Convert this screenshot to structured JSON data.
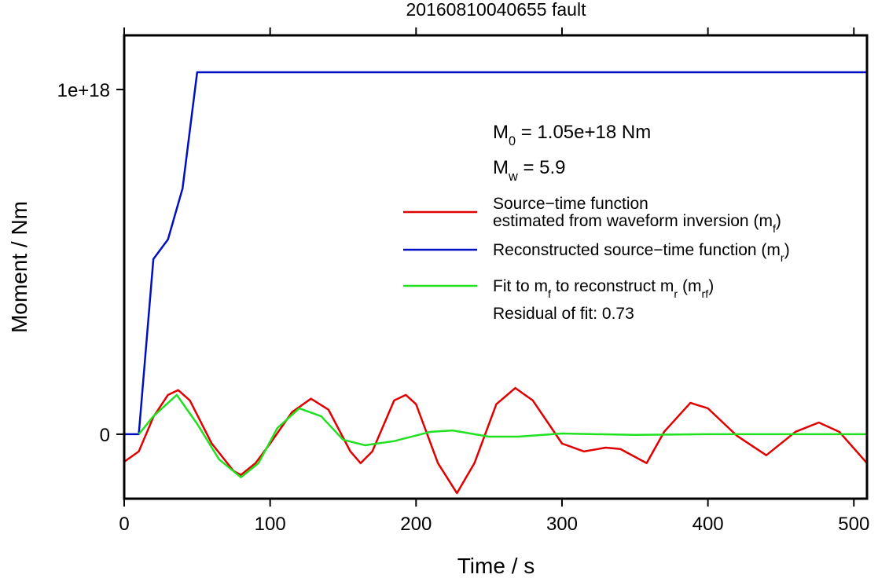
{
  "chart_data": {
    "type": "line",
    "title": "20160810040655 fault",
    "xlabel": "Time / s",
    "ylabel": "Moment / Nm",
    "xlim": [
      0,
      509
    ],
    "xticks": [
      0,
      100,
      200,
      300,
      400,
      500
    ],
    "ylim": [
      -1.87e+17,
      1.157e+18
    ],
    "yticks": [
      0,
      {
        "value": 1e+18,
        "label": "1e+18"
      }
    ],
    "grid": false,
    "series": [
      {
        "name": [
          [
            {
              "text": "Source−time function"
            }
          ],
          [
            {
              "text": "estimated from waveform inversion (m"
            },
            {
              "text": "f",
              "sub": true
            },
            {
              "text": ")"
            }
          ]
        ],
        "color": "#e00000",
        "x": [
          0,
          10,
          20,
          30,
          37,
          45,
          60,
          75,
          80,
          90,
          100,
          115,
          128,
          140,
          155,
          162,
          170,
          185,
          193,
          200,
          215,
          228,
          240,
          255,
          268,
          280,
          300,
          315,
          330,
          340,
          358,
          370,
          388,
          400,
          420,
          440,
          460,
          476,
          490,
          509
        ],
        "values": [
          -8e+16,
          -5e+16,
          5e+16,
          1.14e+17,
          1.28e+17,
          9.8e+16,
          -2.7e+16,
          -1.07e+17,
          -1.18e+17,
          -8.4e+16,
          -2.7e+16,
          6.4e+16,
          1.03e+17,
          7.1e+16,
          -5e+16,
          -8.4e+16,
          -5e+16,
          9.8e+16,
          1.14e+17,
          8.7e+16,
          -8.4e+16,
          -1.71e+17,
          -8.4e+16,
          8.7e+16,
          1.34e+17,
          9.8e+16,
          -2.7e+16,
          -5e+16,
          -3.9e+16,
          -4.3e+16,
          -8.4e+16,
          7000000000000000.0,
          9.1e+16,
          7.5e+16,
          -5000000000000000.0,
          -6.1e+16,
          7000000000000000.0,
          3.4e+16,
          7000000000000000.0,
          -8.4e+16
        ]
      },
      {
        "name": [
          [
            {
              "text": "Reconstructed source−time function (m"
            },
            {
              "text": "r",
              "sub": true
            },
            {
              "text": ")"
            }
          ]
        ],
        "color": "#0010c0",
        "x": [
          0,
          10,
          20,
          30,
          40,
          50,
          509
        ],
        "values": [
          0,
          0,
          5.08e+17,
          5.65e+17,
          7.13e+17,
          1.05e+18,
          1.05e+18
        ]
      },
      {
        "name": [
          [
            {
              "text": "Fit to m"
            },
            {
              "text": "f",
              "sub": true
            },
            {
              "text": " to reconstruct m"
            },
            {
              "text": "r",
              "sub": true
            },
            {
              "text": " (m"
            },
            {
              "text": "rf",
              "sub": true
            },
            {
              "text": ")"
            }
          ]
        ],
        "color": "#20e020",
        "x": [
          10,
          20,
          36,
          50,
          65,
          80,
          92,
          105,
          120,
          135,
          150,
          165,
          185,
          210,
          225,
          250,
          270,
          300,
          350,
          400,
          509
        ],
        "values": [
          0,
          5.2e+16,
          1.14e+17,
          3e+16,
          -7.3e+16,
          -1.25e+17,
          -8.4e+16,
          1.8e+16,
          7.5e+16,
          5.2e+16,
          -1.6e+16,
          -3.2e+16,
          -2e+16,
          7000000000000000.0,
          1.1e+16,
          -7000000000000000.0,
          -7000000000000000.0,
          2000000000000000.0,
          -2000000000000000.0,
          0,
          0
        ]
      }
    ],
    "annotations": [
      [
        {
          "text": "M"
        },
        {
          "text": "0",
          "sub": true
        },
        {
          "text": " = 1.05e+18 Nm"
        }
      ],
      [
        {
          "text": "M"
        },
        {
          "text": "w",
          "sub": true
        },
        {
          "text": " = 5.9"
        }
      ],
      [
        {
          "text": "Residual of fit: 0.73"
        }
      ]
    ]
  }
}
